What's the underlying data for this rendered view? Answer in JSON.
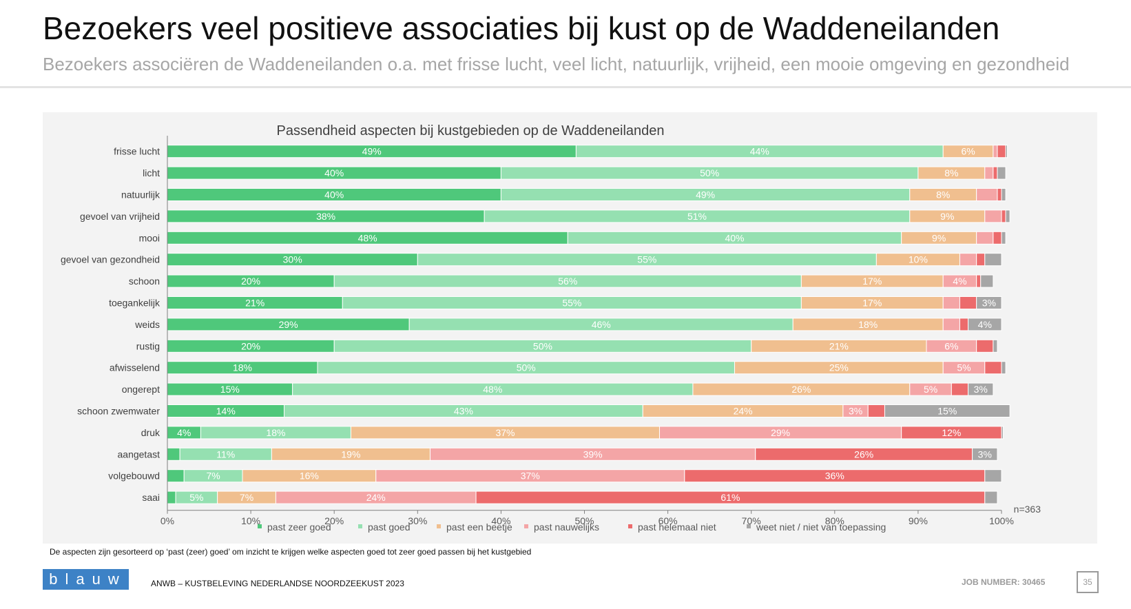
{
  "header": {
    "title": "Bezoekers veel positieve associaties bij kust op de Waddeneilanden",
    "subtitle": "Bezoekers associëren de Waddeneilanden o.a. met frisse lucht, veel licht, natuurlijk, vrijheid, een mooie omgeving en gezondheid"
  },
  "chart_data": {
    "type": "bar",
    "orientation": "horizontal",
    "stacked": true,
    "title": "Passendheid aspecten bij kustgebieden op de Waddeneilanden",
    "categories": [
      "frisse lucht",
      "licht",
      "natuurlijk",
      "gevoel van vrijheid",
      "mooi",
      "gevoel van gezondheid",
      "schoon",
      "toegankelijk",
      "weids",
      "rustig",
      "afwisselend",
      "ongerept",
      "schoon zwemwater",
      "druk",
      "aangetast",
      "volgebouwd",
      "saai"
    ],
    "series": [
      {
        "name": "past zeer goed",
        "color": "#4fc87b",
        "values": [
          49,
          40,
          40,
          38,
          48,
          30,
          20,
          21,
          29,
          20,
          18,
          15,
          14,
          4,
          1.5,
          2,
          1
        ],
        "labels": [
          "49%",
          "40%",
          "40%",
          "38%",
          "48%",
          "30%",
          "20%",
          "21%",
          "29%",
          "20%",
          "18%",
          "15%",
          "14%",
          "4%",
          "",
          "",
          ""
        ]
      },
      {
        "name": "past goed",
        "color": "#95e0b1",
        "values": [
          44,
          50,
          49,
          51,
          40,
          55,
          56,
          55,
          46,
          50,
          50,
          48,
          43,
          18,
          11,
          7,
          5
        ],
        "labels": [
          "44%",
          "50%",
          "49%",
          "51%",
          "40%",
          "55%",
          "56%",
          "55%",
          "46%",
          "50%",
          "50%",
          "48%",
          "43%",
          "18%",
          "11%",
          "7%",
          "5%"
        ]
      },
      {
        "name": "past een beetje",
        "color": "#f0bf8f",
        "values": [
          6,
          8,
          8,
          9,
          9,
          10,
          17,
          17,
          18,
          21,
          25,
          26,
          24,
          37,
          19,
          16,
          7
        ],
        "labels": [
          "6%",
          "8%",
          "8%",
          "9%",
          "9%",
          "10%",
          "17%",
          "17%",
          "18%",
          "21%",
          "25%",
          "26%",
          "24%",
          "37%",
          "19%",
          "16%",
          "7%"
        ]
      },
      {
        "name": "past nauwelijks",
        "color": "#f4a5a6",
        "values": [
          0.5,
          1,
          2.5,
          2,
          2,
          2,
          4,
          2,
          2,
          6,
          5,
          5,
          3,
          29,
          39,
          37,
          24
        ],
        "labels": [
          "",
          "",
          "",
          "",
          "",
          "",
          "4%",
          "",
          "",
          "6%",
          "5%",
          "5%",
          "3%",
          "29%",
          "39%",
          "37%",
          "24%"
        ]
      },
      {
        "name": "past helemaal niet",
        "color": "#ec6b6c",
        "values": [
          1,
          0.5,
          0.5,
          0.5,
          1,
          1,
          0.5,
          2,
          1,
          2,
          2,
          2,
          2,
          12,
          26,
          36,
          61
        ],
        "labels": [
          "",
          "",
          "",
          "",
          "",
          "",
          "",
          "",
          "",
          "",
          "",
          "",
          "",
          "12%",
          "26%",
          "36%",
          "61%"
        ]
      },
      {
        "name": "weet niet / niet van toepassing",
        "color": "#a6a6a6",
        "values": [
          0.2,
          1,
          0.5,
          0.5,
          0.5,
          2,
          1.5,
          3,
          4,
          0.5,
          0.5,
          3,
          15,
          0.2,
          3,
          2,
          1.5
        ],
        "labels": [
          "",
          "",
          "",
          "",
          "",
          "",
          "",
          "3%",
          "4%",
          "",
          "",
          "3%",
          "15%",
          "",
          "3%",
          "",
          ""
        ]
      }
    ],
    "xlim": [
      0,
      100
    ],
    "xticks": [
      "0%",
      "10%",
      "20%",
      "30%",
      "40%",
      "50%",
      "60%",
      "70%",
      "80%",
      "90%",
      "100%"
    ],
    "sample_note": "n=363",
    "legend_position": "bottom",
    "grid": false
  },
  "footnote": "De aspecten zijn gesorteerd op ‘past (zeer) goed’ om inzicht te krijgen welke aspecten goed tot zeer goed passen bij het kustgebied",
  "footer": {
    "logo_text": "blauw",
    "report_name": "ANWB – KUSTBELEVING NEDERLANDSE NOORDZEEKUST 2023",
    "job_label": "JOB NUMBER:",
    "job_number": "30465",
    "page_number": "35"
  }
}
